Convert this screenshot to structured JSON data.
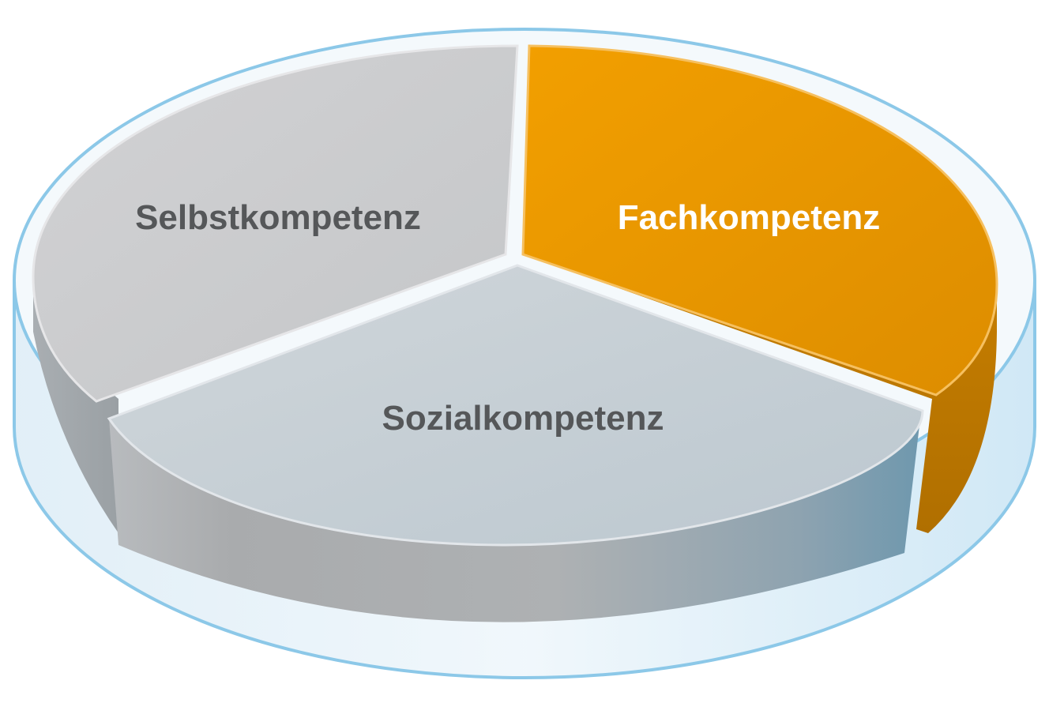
{
  "diagram": {
    "segments": [
      {
        "id": "selbst",
        "label": "Selbstkompetenz",
        "color": "#c9c9cb",
        "label_color": "#555759"
      },
      {
        "id": "fach",
        "label": "Fachkompetenz",
        "color": "#ee9a00",
        "label_color": "#ffffff"
      },
      {
        "id": "sozial",
        "label": "Sozialkompetenz",
        "color": "#c6ced4",
        "label_color": "#555759"
      }
    ],
    "container_color": "#8cc8e8"
  }
}
